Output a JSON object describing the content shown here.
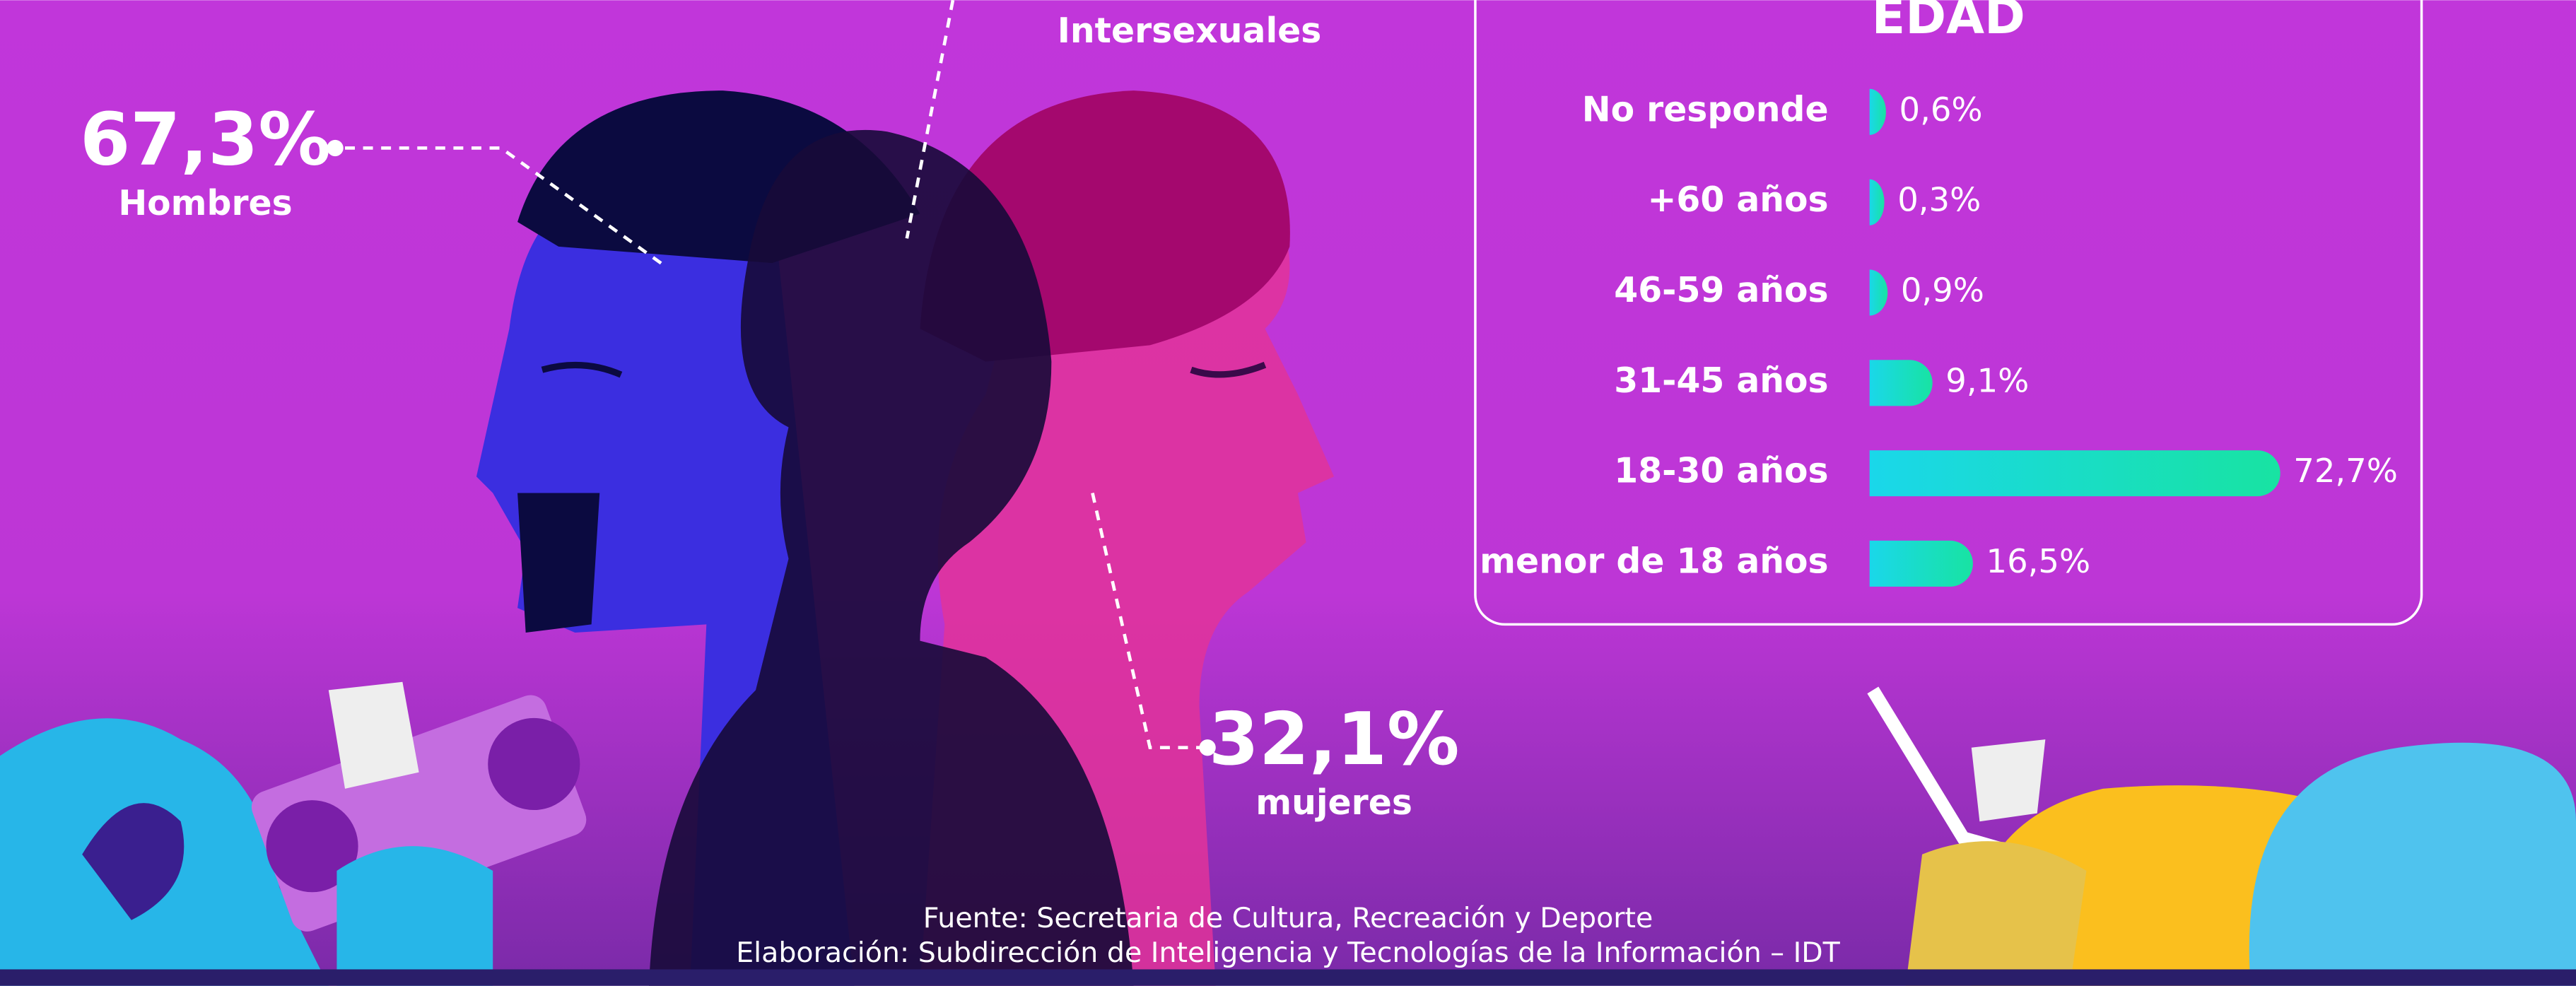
{
  "gender": {
    "label_intersex": "Intersexuales",
    "men": {
      "value_label": "67,3%",
      "label": "Hombres"
    },
    "women": {
      "value_label": "32,1%",
      "label": "mujeres"
    }
  },
  "chart_data": {
    "type": "bar",
    "orientation": "horizontal",
    "title": "EDAD",
    "categories": [
      "No responde",
      "+60 años",
      "46-59 años",
      "31-45 años",
      "18-30 años",
      "menor de 18 años"
    ],
    "values": [
      0.6,
      0.3,
      0.9,
      9.1,
      72.7,
      16.5
    ],
    "value_labels": [
      "0,6%",
      "0,3%",
      "0,9%",
      "9,1%",
      "72,7%",
      "16,5%"
    ],
    "color": [
      "#1ad7ea",
      "#18e3a2"
    ]
  },
  "footer": {
    "source": "Fuente: Secretaria de Cultura, Recreación y Deporte",
    "credit": "Elaboración: Subdirección de Inteligencia y Tecnologías de la Información – IDT"
  }
}
